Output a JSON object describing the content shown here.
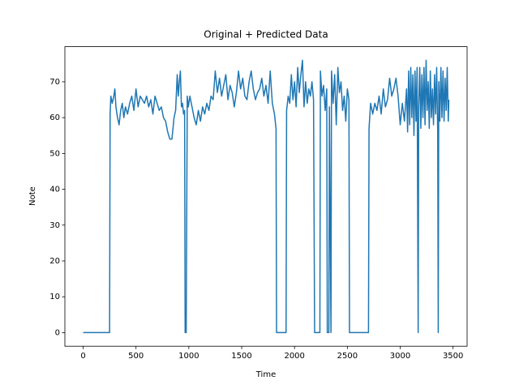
{
  "chart_data": {
    "type": "line",
    "title": "Original + Predicted Data",
    "x_label": "Time",
    "y_label": "Note",
    "color": "#1f77b4",
    "x": [
      0,
      250,
      255,
      262,
      275,
      290,
      300,
      310,
      325,
      340,
      355,
      370,
      385,
      400,
      420,
      440,
      460,
      480,
      500,
      520,
      540,
      560,
      580,
      600,
      620,
      640,
      660,
      680,
      700,
      720,
      740,
      760,
      780,
      800,
      820,
      840,
      860,
      875,
      890,
      900,
      910,
      920,
      930,
      940,
      950,
      960,
      965,
      975,
      985,
      995,
      1010,
      1030,
      1050,
      1070,
      1090,
      1110,
      1130,
      1150,
      1170,
      1190,
      1210,
      1230,
      1250,
      1270,
      1290,
      1310,
      1330,
      1350,
      1370,
      1390,
      1410,
      1430,
      1450,
      1470,
      1490,
      1510,
      1530,
      1550,
      1570,
      1590,
      1610,
      1630,
      1650,
      1670,
      1690,
      1710,
      1730,
      1750,
      1770,
      1790,
      1810,
      1825,
      1830,
      1920,
      1925,
      1940,
      1955,
      1970,
      1985,
      2000,
      2015,
      2030,
      2045,
      2060,
      2075,
      2090,
      2105,
      2120,
      2135,
      2150,
      2165,
      2180,
      2190,
      2240,
      2245,
      2260,
      2275,
      2290,
      2305,
      2310,
      2325,
      2330,
      2345,
      2350,
      2365,
      2380,
      2395,
      2410,
      2425,
      2440,
      2455,
      2470,
      2485,
      2500,
      2515,
      2520,
      2700,
      2705,
      2720,
      2740,
      2760,
      2780,
      2800,
      2820,
      2840,
      2860,
      2880,
      2900,
      2920,
      2940,
      2960,
      2980,
      3000,
      3020,
      3040,
      3060,
      3070,
      3080,
      3090,
      3100,
      3110,
      3120,
      3130,
      3140,
      3150,
      3160,
      3170,
      3175,
      3185,
      3195,
      3205,
      3215,
      3225,
      3235,
      3245,
      3255,
      3265,
      3275,
      3285,
      3295,
      3305,
      3315,
      3325,
      3335,
      3345,
      3355,
      3360,
      3365,
      3375,
      3385,
      3395,
      3405,
      3415,
      3425,
      3435,
      3445,
      3455,
      3460
    ],
    "values": [
      0,
      0,
      61,
      66,
      64,
      66,
      68,
      63,
      60,
      58,
      62,
      64,
      60,
      63,
      61,
      64,
      66,
      62,
      68,
      63,
      66,
      65,
      64,
      66,
      63,
      65,
      61,
      66,
      64,
      62,
      63,
      60,
      59,
      56,
      54,
      54,
      60,
      62,
      72,
      66,
      70,
      73,
      63,
      64,
      61,
      62,
      0,
      0,
      66,
      63,
      66,
      63,
      60,
      58,
      62,
      59,
      63,
      61,
      64,
      62,
      66,
      65,
      73,
      67,
      71,
      66,
      69,
      72,
      65,
      69,
      67,
      63,
      67,
      73,
      68,
      71,
      66,
      65,
      70,
      73,
      68,
      65,
      67,
      68,
      71,
      66,
      69,
      64,
      73,
      64,
      61,
      57,
      0,
      0,
      62,
      66,
      64,
      72,
      65,
      70,
      63,
      74,
      67,
      72,
      76,
      63,
      70,
      64,
      68,
      66,
      70,
      65,
      0,
      0,
      73,
      66,
      69,
      62,
      68,
      0,
      0,
      63,
      0,
      73,
      64,
      72,
      58,
      74,
      67,
      70,
      62,
      66,
      59,
      68,
      65,
      0,
      0,
      57,
      64,
      61,
      64,
      62,
      66,
      61,
      68,
      63,
      65,
      71,
      66,
      68,
      71,
      66,
      58,
      64,
      59,
      68,
      56,
      73,
      58,
      74,
      60,
      72,
      55,
      73,
      59,
      74,
      0,
      63,
      74,
      57,
      72,
      60,
      74,
      58,
      76,
      62,
      70,
      57,
      73,
      60,
      68,
      58,
      72,
      61,
      74,
      56,
      0,
      70,
      59,
      74,
      60,
      73,
      59,
      71,
      62,
      74,
      59,
      65
    ],
    "xlim": [
      -173,
      3633
    ],
    "ylim": [
      -3.8,
      79.8
    ],
    "xticks": [
      0,
      500,
      1000,
      1500,
      2000,
      2500,
      3000,
      3500
    ],
    "yticks": [
      0,
      10,
      20,
      30,
      40,
      50,
      60,
      70
    ]
  }
}
